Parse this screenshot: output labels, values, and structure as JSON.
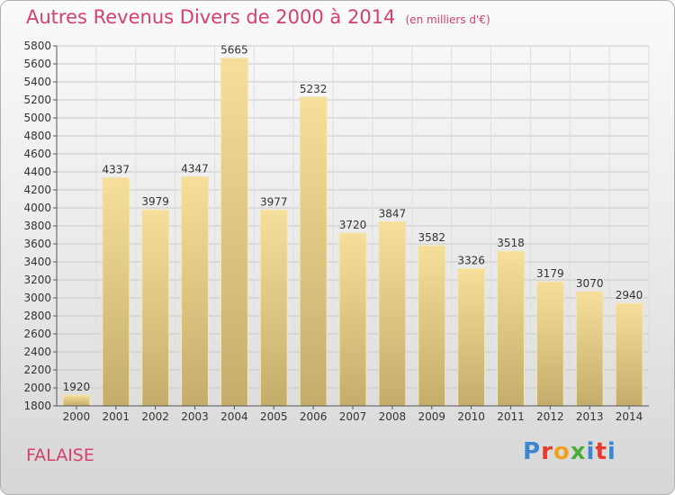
{
  "title": "Autres Revenus Divers de 2000 à 2014",
  "unit_note": "(en milliers d'€)",
  "city": "FALAISE",
  "logo_text": "Proxiti",
  "chart_data": {
    "type": "bar",
    "title": "Autres Revenus Divers de 2000 à 2014",
    "subtitle": "(en milliers d'€)",
    "categories": [
      "2000",
      "2001",
      "2002",
      "2003",
      "2004",
      "2005",
      "2006",
      "2007",
      "2008",
      "2009",
      "2010",
      "2011",
      "2012",
      "2013",
      "2014"
    ],
    "values": [
      1920,
      4337,
      3979,
      4347,
      5665,
      3977,
      5232,
      3720,
      3847,
      3582,
      3326,
      3518,
      3179,
      3070,
      2940
    ],
    "ylim": [
      1800,
      5800
    ],
    "yticks": [
      1800,
      2000,
      2200,
      2400,
      2600,
      2800,
      3000,
      3200,
      3400,
      3600,
      3800,
      4000,
      4200,
      4400,
      4600,
      4800,
      5000,
      5200,
      5400,
      5600,
      5800
    ],
    "xlabel": "",
    "ylabel": "",
    "grid": true,
    "bar_color": "#d9c07a"
  }
}
